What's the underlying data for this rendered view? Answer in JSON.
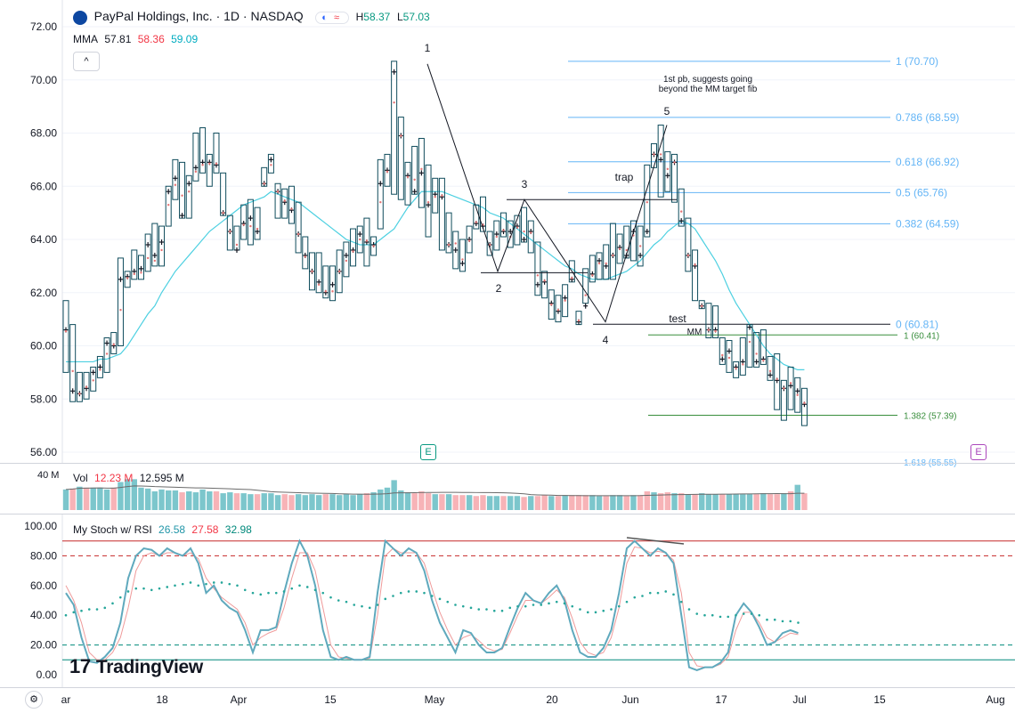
{
  "header": {
    "symbol_title": "PayPal Holdings, Inc. · 1D · NASDAQ",
    "high_label": "H",
    "high_value": "58.37",
    "low_label": "L",
    "low_value": "57.03",
    "chip_label": "≈",
    "collapse_label": "^"
  },
  "ma_legend": {
    "name": "MMA",
    "v1": "57.81",
    "v2": "58.36",
    "v3": "59.09"
  },
  "vol_legend": {
    "name": "Vol",
    "v1": "12.23 M",
    "v2": "12.595 M",
    "scale_label": "40 M"
  },
  "stoch_legend": {
    "name": "My Stoch w/ RSI",
    "v1": "26.58",
    "v2": "27.58",
    "v3": "32.98"
  },
  "price_axis": [
    "72.00",
    "70.00",
    "68.00",
    "66.00",
    "64.00",
    "62.00",
    "60.00",
    "58.00",
    "56.00"
  ],
  "stoch_axis": [
    "100.00",
    "80.00",
    "60.00",
    "40.00",
    "20.00",
    "0.00"
  ],
  "time_axis": [
    "ar",
    "18",
    "Apr",
    "15",
    "May",
    "20",
    "Jun",
    "17",
    "Jul",
    "15",
    "Aug"
  ],
  "annotations": {
    "wave_1": "1",
    "wave_2": "2",
    "wave_3": "3",
    "wave_4": "4",
    "wave_5": "5",
    "trap": "trap",
    "test": "test",
    "mm": "MM",
    "note_line1": "1st pb, suggests going",
    "note_line2": "beyond the MM target fib",
    "fib_1": "1 (70.70)",
    "fib_0786": "0.786 (68.59)",
    "fib_0618": "0.618 (66.92)",
    "fib_05": "0.5 (65.76)",
    "fib_0382": "0.382 (64.59)",
    "fib_0": "0 (60.81)",
    "mm_1": "1 (60.41)",
    "mm_1382": "1.382 (57.39)",
    "mm_cut": "1.618 (55.55)"
  },
  "badges": {
    "earnings_1": "E",
    "earnings_2": "E"
  },
  "branding": {
    "logo_text": "TradingView",
    "logo_mark": "17"
  },
  "settings_icon": "gear-icon",
  "colors": {
    "bar": "#0f4c5c",
    "ma": "#4dd0e1",
    "vol_up": "#7cc6cc",
    "vol_down": "#f7b3b7",
    "stoch_k": "#5fa9bd",
    "stoch_d": "#ef9a9a",
    "rsi_dots": "#26a69a",
    "fib": "#64b5f6",
    "mm": "#388e3c",
    "overbought": "#c62828",
    "oversold": "#00897b",
    "earnings": "#089981",
    "earnings_future": "#ab47bc"
  },
  "chart_data": {
    "type": "bar",
    "ylim": [
      56,
      72.5
    ],
    "ohlc": [
      [
        60.5,
        61.7,
        59.0,
        60.6
      ],
      [
        59.8,
        60.8,
        57.9,
        58.3
      ],
      [
        58.2,
        59.0,
        57.9,
        58.2
      ],
      [
        58.5,
        59.0,
        58.0,
        58.4
      ],
      [
        58.4,
        59.2,
        58.3,
        59.0
      ],
      [
        59.0,
        59.6,
        58.8,
        59.2
      ],
      [
        59.3,
        60.3,
        59.0,
        60.1
      ],
      [
        60.1,
        60.5,
        59.7,
        60.0
      ],
      [
        60.2,
        63.3,
        60.0,
        62.5
      ],
      [
        62.5,
        62.8,
        62.2,
        62.6
      ],
      [
        62.6,
        63.6,
        62.5,
        62.8
      ],
      [
        62.6,
        63.4,
        62.5,
        62.9
      ],
      [
        62.8,
        64.2,
        62.8,
        63.8
      ],
      [
        63.0,
        64.6,
        63.0,
        63.4
      ],
      [
        63.3,
        64.5,
        63.0,
        63.9
      ],
      [
        64.8,
        66.0,
        64.5,
        65.8
      ],
      [
        65.8,
        67.0,
        65.5,
        66.3
      ],
      [
        66.4,
        66.9,
        64.8,
        64.9
      ],
      [
        65.5,
        66.4,
        64.8,
        66.1
      ],
      [
        66.4,
        68.0,
        66.2,
        66.7
      ],
      [
        66.7,
        68.2,
        66.5,
        66.9
      ],
      [
        66.8,
        67.2,
        66.0,
        66.9
      ],
      [
        66.9,
        68.0,
        66.5,
        66.8
      ],
      [
        65.0,
        66.5,
        64.9,
        65.0
      ],
      [
        64.3,
        64.9,
        63.6,
        64.3
      ],
      [
        64.0,
        64.5,
        63.6,
        63.6
      ],
      [
        64.5,
        65.3,
        64.0,
        64.6
      ],
      [
        64.2,
        65.5,
        63.8,
        64.8
      ],
      [
        64.5,
        65.2,
        64.0,
        64.3
      ],
      [
        66.1,
        66.7,
        66.0,
        66.1
      ],
      [
        66.6,
        67.2,
        66.5,
        67.0
      ],
      [
        65.8,
        66.1,
        64.8,
        65.8
      ],
      [
        65.5,
        65.9,
        64.8,
        65.4
      ],
      [
        65.2,
        66.0,
        64.6,
        65.1
      ],
      [
        64.2,
        65.4,
        63.5,
        64.2
      ],
      [
        63.3,
        64.1,
        62.9,
        63.4
      ],
      [
        62.8,
        63.5,
        62.1,
        62.8
      ],
      [
        62.2,
        63.5,
        62.0,
        62.4
      ],
      [
        62.1,
        63.0,
        61.8,
        62.0
      ],
      [
        61.8,
        63.0,
        61.7,
        62.3
      ],
      [
        62.8,
        63.6,
        62.0,
        62.8
      ],
      [
        63.0,
        63.9,
        62.6,
        63.4
      ],
      [
        63.5,
        64.4,
        63.0,
        63.6
      ],
      [
        63.8,
        64.5,
        63.5,
        64.2
      ],
      [
        64.0,
        64.8,
        63.0,
        63.9
      ],
      [
        63.7,
        64.1,
        63.4,
        63.8
      ],
      [
        64.7,
        67.0,
        64.4,
        66.1
      ],
      [
        66.5,
        67.2,
        66.0,
        66.6
      ],
      [
        68.0,
        70.7,
        65.7,
        70.3
      ],
      [
        67.9,
        68.6,
        65.5,
        67.9
      ],
      [
        66.3,
        66.9,
        65.3,
        66.4
      ],
      [
        66.7,
        67.5,
        65.7,
        65.8
      ],
      [
        66.8,
        67.8,
        65.2,
        66.5
      ],
      [
        65.5,
        66.8,
        64.1,
        65.3
      ],
      [
        65.5,
        66.3,
        65.0,
        65.7
      ],
      [
        65.7,
        66.3,
        63.6,
        65.6
      ],
      [
        63.8,
        65.0,
        63.5,
        63.8
      ],
      [
        64.1,
        64.3,
        62.9,
        63.6
      ],
      [
        63.4,
        64.0,
        62.8,
        63.1
      ],
      [
        63.9,
        64.5,
        63.5,
        64.0
      ],
      [
        64.7,
        65.3,
        64.4,
        64.6
      ],
      [
        64.6,
        65.6,
        64.3,
        64.5
      ],
      [
        63.8,
        64.3,
        63.4,
        63.8
      ],
      [
        64.0,
        64.7,
        63.6,
        64.2
      ],
      [
        64.4,
        65.0,
        64.1,
        64.3
      ],
      [
        63.9,
        64.7,
        63.7,
        64.3
      ],
      [
        64.4,
        64.9,
        63.8,
        64.5
      ],
      [
        64.6,
        65.2,
        63.9,
        64.0
      ],
      [
        64.2,
        64.7,
        63.5,
        64.3
      ],
      [
        63.0,
        63.9,
        61.9,
        62.3
      ],
      [
        62.5,
        62.8,
        61.8,
        62.4
      ],
      [
        61.5,
        62.1,
        61.0,
        61.6
      ],
      [
        61.4,
        61.9,
        60.9,
        61.3
      ],
      [
        61.6,
        62.3,
        61.1,
        61.8
      ],
      [
        62.6,
        63.2,
        62.4,
        62.5
      ],
      [
        61.0,
        61.3,
        60.8,
        60.9
      ],
      [
        62.3,
        62.9,
        61.6,
        61.5
      ],
      [
        62.6,
        63.4,
        62.4,
        62.7
      ],
      [
        63.0,
        63.5,
        62.5,
        63.2
      ],
      [
        63.2,
        63.8,
        62.5,
        63.0
      ],
      [
        63.4,
        64.6,
        62.5,
        63.4
      ],
      [
        63.6,
        64.2,
        63.1,
        63.7
      ],
      [
        63.8,
        64.5,
        63.3,
        63.4
      ],
      [
        64.0,
        64.7,
        63.2,
        64.3
      ],
      [
        64.1,
        64.5,
        63.0,
        63.4
      ],
      [
        66.5,
        66.8,
        64.1,
        64.3
      ],
      [
        67.2,
        67.6,
        66.7,
        67.2
      ],
      [
        67.4,
        68.3,
        65.6,
        67.0
      ],
      [
        66.9,
        67.3,
        65.8,
        66.4
      ],
      [
        66.9,
        67.2,
        65.4,
        66.9
      ],
      [
        65.4,
        65.9,
        64.5,
        64.7
      ],
      [
        63.4,
        64.8,
        62.8,
        63.4
      ],
      [
        63.1,
        63.6,
        61.7,
        63.0
      ],
      [
        61.5,
        61.7,
        61.4,
        61.5
      ],
      [
        60.6,
        61.6,
        60.3,
        60.6
      ],
      [
        60.5,
        61.5,
        60.3,
        60.6
      ],
      [
        59.8,
        60.3,
        59.3,
        59.5
      ],
      [
        59.3,
        60.2,
        59.0,
        59.8
      ],
      [
        59.1,
        59.4,
        58.8,
        59.2
      ],
      [
        59.2,
        60.3,
        58.9,
        59.4
      ],
      [
        59.6,
        60.8,
        59.2,
        60.7
      ],
      [
        60.0,
        60.5,
        59.2,
        59.4
      ],
      [
        59.4,
        60.6,
        59.3,
        59.5
      ],
      [
        59.2,
        59.6,
        58.7,
        58.9
      ],
      [
        58.8,
        59.7,
        57.6,
        58.7
      ],
      [
        58.4,
        58.7,
        57.2,
        58.4
      ],
      [
        58.7,
        59.2,
        57.6,
        58.5
      ],
      [
        58.0,
        58.8,
        57.5,
        58.3
      ],
      [
        57.9,
        58.4,
        57.0,
        57.8
      ]
    ],
    "ma": [
      59.4,
      59.4,
      59.4,
      59.4,
      59.4,
      59.5,
      59.5,
      59.6,
      59.7,
      60.0,
      60.4,
      60.8,
      61.2,
      61.5,
      62.0,
      62.4,
      62.8,
      63.1,
      63.4,
      63.7,
      64.0,
      64.3,
      64.5,
      64.7,
      64.9,
      65.1,
      65.3,
      65.4,
      65.5,
      65.6,
      65.8,
      65.7,
      65.6,
      65.5,
      65.4,
      65.2,
      65.0,
      64.8,
      64.6,
      64.4,
      64.2,
      64.0,
      63.9,
      63.8,
      63.8,
      63.8,
      64.0,
      64.2,
      64.4,
      64.8,
      65.2,
      65.5,
      65.8,
      65.8,
      65.8,
      65.8,
      65.7,
      65.6,
      65.5,
      65.4,
      65.3,
      65.2,
      65.0,
      64.9,
      64.8,
      64.6,
      64.4,
      64.2,
      64.0,
      63.8,
      63.6,
      63.4,
      63.2,
      63.0,
      62.9,
      62.7,
      62.6,
      62.5,
      62.5,
      62.5,
      62.6,
      62.7,
      62.8,
      63.0,
      63.2,
      63.5,
      63.8,
      64.0,
      64.3,
      64.5,
      64.7,
      64.6,
      64.4,
      64.0,
      63.6,
      63.2,
      62.7,
      62.1,
      61.6,
      61.2,
      60.8,
      60.4,
      60.0,
      59.7,
      59.5,
      59.3,
      59.2,
      59.1,
      59.1
    ],
    "volume": [
      22,
      23,
      25,
      24,
      24,
      24,
      22,
      24,
      30,
      33,
      33,
      24,
      23,
      20,
      22,
      21,
      21,
      19,
      20,
      19,
      22,
      20,
      20,
      18,
      19,
      18,
      18,
      17,
      17,
      18,
      18,
      16,
      17,
      16,
      17,
      16,
      17,
      16,
      17,
      17,
      16,
      17,
      16,
      17,
      18,
      19,
      22,
      24,
      32,
      21,
      19,
      18,
      20,
      18,
      17,
      17,
      17,
      16,
      16,
      16,
      15,
      16,
      15,
      15,
      15,
      15,
      15,
      14,
      15,
      15,
      16,
      15,
      15,
      16,
      16,
      16,
      16,
      16,
      15,
      15,
      16,
      16,
      15,
      16,
      16,
      20,
      19,
      18,
      19,
      18,
      18,
      17,
      17,
      18,
      17,
      17,
      17,
      17,
      17,
      17,
      17,
      17,
      18,
      17,
      17,
      18,
      20,
      27,
      18
    ],
    "stoch_k": [
      55,
      47,
      25,
      9,
      8,
      12,
      18,
      35,
      65,
      80,
      85,
      84,
      80,
      85,
      82,
      80,
      85,
      75,
      55,
      60,
      50,
      45,
      42,
      30,
      15,
      30,
      30,
      32,
      55,
      75,
      90,
      80,
      60,
      30,
      12,
      10,
      12,
      10,
      10,
      12,
      55,
      90,
      85,
      80,
      85,
      82,
      70,
      50,
      35,
      25,
      15,
      30,
      28,
      20,
      15,
      15,
      18,
      32,
      45,
      55,
      50,
      48,
      55,
      60,
      50,
      30,
      15,
      12,
      12,
      18,
      30,
      55,
      85,
      90,
      85,
      80,
      85,
      82,
      75,
      40,
      5,
      3,
      5,
      5,
      8,
      15,
      40,
      48,
      42,
      32,
      20,
      22,
      28,
      30,
      28
    ],
    "stoch_d": [
      60,
      50,
      35,
      15,
      10,
      10,
      15,
      25,
      45,
      70,
      80,
      82,
      80,
      82,
      82,
      80,
      82,
      78,
      65,
      58,
      52,
      48,
      44,
      35,
      20,
      25,
      28,
      30,
      45,
      65,
      82,
      82,
      70,
      45,
      20,
      12,
      11,
      10,
      10,
      11,
      40,
      80,
      85,
      82,
      82,
      82,
      75,
      58,
      42,
      30,
      20,
      25,
      27,
      23,
      18,
      16,
      17,
      28,
      40,
      50,
      50,
      48,
      52,
      57,
      52,
      38,
      22,
      15,
      13,
      15,
      25,
      45,
      75,
      86,
      85,
      82,
      83,
      82,
      77,
      55,
      15,
      6,
      5,
      5,
      7,
      12,
      30,
      42,
      42,
      35,
      25,
      22,
      25,
      28,
      27
    ],
    "rsi": [
      40,
      42,
      43,
      44,
      44,
      45,
      48,
      52,
      56,
      58,
      58,
      57,
      58,
      59,
      60,
      61,
      62,
      60,
      61,
      62,
      62,
      61,
      60,
      57,
      55,
      54,
      55,
      55,
      56,
      58,
      60,
      59,
      57,
      55,
      52,
      50,
      49,
      47,
      46,
      45,
      47,
      51,
      53,
      55,
      56,
      56,
      55,
      53,
      51,
      49,
      47,
      46,
      45,
      44,
      44,
      43,
      43,
      45,
      46,
      46,
      47,
      47,
      48,
      49,
      48,
      46,
      44,
      42,
      42,
      43,
      44,
      46,
      49,
      52,
      53,
      55,
      55,
      56,
      54,
      49,
      44,
      41,
      40,
      40,
      39,
      39,
      40,
      41,
      41,
      40,
      37,
      37,
      36,
      36,
      35
    ]
  }
}
